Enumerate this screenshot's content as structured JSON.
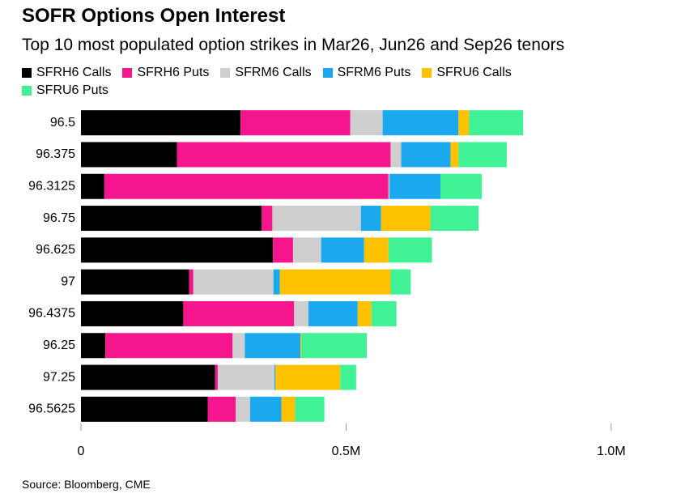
{
  "chart_data": {
    "type": "stacked-bar-horizontal",
    "title": "SOFR Options Open Interest",
    "subtitle": "Top 10 most populated option strikes in Mar26, Jun26 and Sep26 tenors",
    "source": "Source: Bloomberg, CME",
    "categories": [
      "96.5",
      "96.375",
      "96.3125",
      "96.75",
      "96.625",
      "97",
      "96.4375",
      "96.25",
      "97.25",
      "96.5625"
    ],
    "series": [
      {
        "name": "SFRH6 Calls",
        "color": "#000000",
        "values": [
          301000,
          181000,
          44000,
          341000,
          362000,
          204000,
          193000,
          46000,
          253000,
          239000
        ]
      },
      {
        "name": "SFRH6 Puts",
        "color": "#f5158c",
        "values": [
          207000,
          403000,
          536000,
          20000,
          38000,
          8000,
          209000,
          240000,
          5000,
          53000
        ]
      },
      {
        "name": "SFRM6 Calls",
        "color": "#cfcfcf",
        "values": [
          61000,
          20000,
          2000,
          167000,
          53000,
          151000,
          27000,
          23000,
          107000,
          27000
        ]
      },
      {
        "name": "SFRM6 Puts",
        "color": "#1aa8ee",
        "values": [
          143000,
          93000,
          96000,
          38000,
          81000,
          12000,
          93000,
          105000,
          2000,
          59000
        ]
      },
      {
        "name": "SFRU6 Calls",
        "color": "#fdc100",
        "values": [
          20000,
          15000,
          0,
          93000,
          46000,
          209000,
          26000,
          2000,
          122000,
          26000
        ]
      },
      {
        "name": "SFRU6 Puts",
        "color": "#40f196",
        "values": [
          102000,
          91000,
          78000,
          91000,
          82000,
          38000,
          47000,
          123000,
          30000,
          55000
        ]
      }
    ],
    "xlim": [
      0,
      1130000
    ],
    "xticks": [
      0,
      {
        "value": 500000,
        "label": "0.5M"
      },
      {
        "value": 1000000,
        "label": "1.0M"
      }
    ]
  }
}
